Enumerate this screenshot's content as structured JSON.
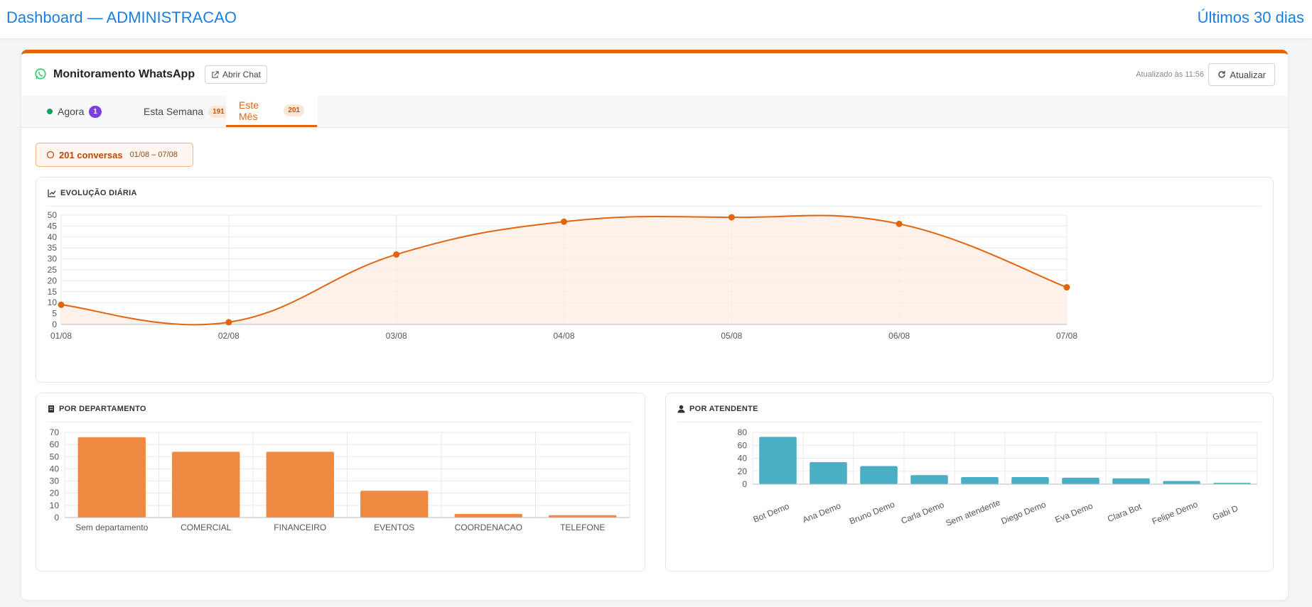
{
  "header": {
    "title": "Dashboard — ADMINISTRACAO",
    "range_label": "Últimos 30 dias"
  },
  "card": {
    "title": "Monitoramento WhatsApp",
    "open_chat_label": "Abrir Chat",
    "updated_label": "Atualizado às 11:56",
    "refresh_label": "Atualizar",
    "accent_color": "#e0650e"
  },
  "tabs": [
    {
      "label": "Agora",
      "badge": "1",
      "active": false
    },
    {
      "label": "Esta Semana",
      "badge": "191",
      "active": false
    },
    {
      "label": "Este Mês",
      "badge": "201",
      "active": true
    }
  ],
  "summary": {
    "count_label": "201 conversas",
    "date_range": "01/08 – 07/08"
  },
  "panels": {
    "daily": "EVOLUÇÃO DIÁRIA",
    "department": "POR DEPARTAMENTO",
    "attendant": "POR ATENDENTE"
  },
  "chart_data": [
    {
      "type": "line",
      "title": "EVOLUÇÃO DIÁRIA",
      "x": [
        "01/08",
        "02/08",
        "03/08",
        "04/08",
        "05/08",
        "06/08",
        "07/08"
      ],
      "series": [
        {
          "values": [
            9,
            1,
            32,
            47,
            49,
            46,
            17
          ]
        }
      ],
      "ylim": [
        0,
        50
      ],
      "yticks": [
        0,
        5,
        10,
        15,
        20,
        25,
        30,
        35,
        40,
        45,
        50
      ],
      "color": "#e0650e",
      "fill": "#fdeee4",
      "grid": true
    },
    {
      "type": "bar",
      "title": "POR DEPARTAMENTO",
      "categories": [
        "Sem departamento",
        "COMERCIAL",
        "FINANCEIRO",
        "EVENTOS",
        "COORDENACAO",
        "TELEFONE"
      ],
      "values": [
        66,
        54,
        54,
        22,
        3,
        2
      ],
      "ylim": [
        0,
        70
      ],
      "yticks": [
        0,
        10,
        20,
        30,
        40,
        50,
        60,
        70
      ],
      "color": "#ee8a42",
      "grid": true
    },
    {
      "type": "bar",
      "title": "POR ATENDENTE",
      "categories": [
        "Bot Demo",
        "Ana Demo",
        "Bruno Demo",
        "Carla Demo",
        "Sem atendente",
        "Diego Demo",
        "Eva Demo",
        "Clara Bot",
        "Felipe Demo",
        "Gabi D"
      ],
      "values": [
        73,
        34,
        28,
        14,
        11,
        11,
        10,
        9,
        5,
        2
      ],
      "ylim": [
        0,
        80
      ],
      "yticks": [
        0,
        20,
        40,
        60,
        80
      ],
      "color": "#4aaec4",
      "grid": true
    }
  ]
}
